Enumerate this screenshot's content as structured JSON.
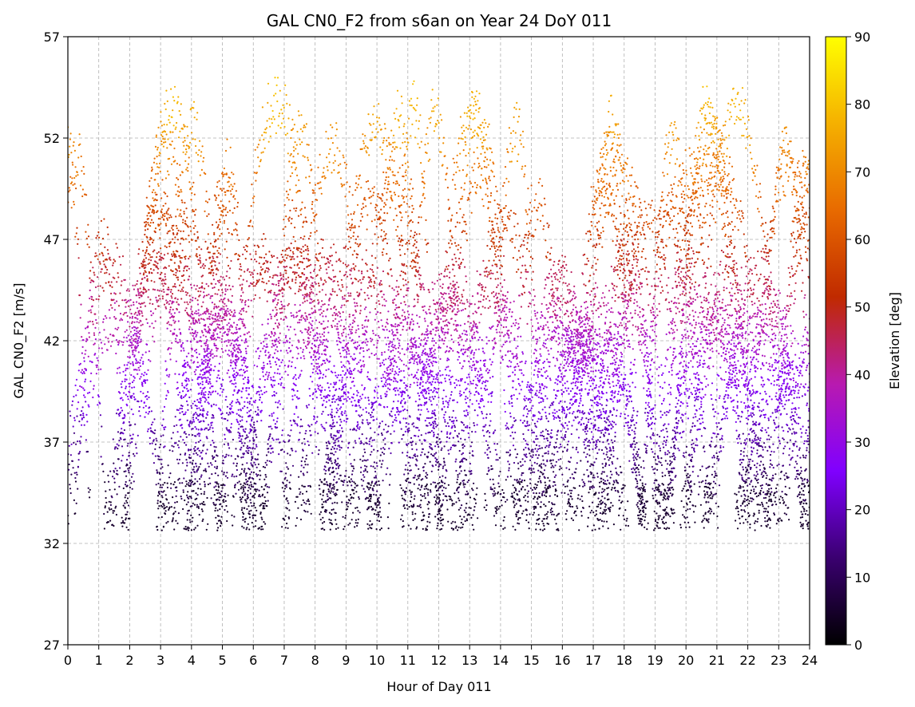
{
  "chart_data": {
    "type": "scatter",
    "title": "GAL CN0_F2 from s6an on Year 24 DoY 011",
    "xlabel": "Hour of Day 011",
    "ylabel": "GAL CN0_F2 [m/s]",
    "xlim": [
      0,
      24
    ],
    "ylim": [
      27,
      57
    ],
    "xticks": [
      "0",
      "1",
      "2",
      "3",
      "4",
      "5",
      "6",
      "7",
      "8",
      "9",
      "10",
      "11",
      "12",
      "13",
      "14",
      "15",
      "16",
      "17",
      "18",
      "19",
      "20",
      "21",
      "22",
      "23",
      "24"
    ],
    "yticks": [
      "27",
      "32",
      "37",
      "42",
      "47",
      "52",
      "57"
    ],
    "grid": true,
    "colormap": "gnuplot",
    "colorbar": {
      "label": "Elevation [deg]",
      "range": [
        0,
        90
      ],
      "ticks": [
        "0",
        "10",
        "20",
        "30",
        "40",
        "50",
        "60",
        "70",
        "80",
        "90"
      ],
      "colors": [
        "#000000",
        "#3a0070",
        "#8000ff",
        "#b81ab0",
        "#c02a00",
        "#e86a00",
        "#f5b000",
        "#ffff00"
      ]
    },
    "series_summary": "Dense point cloud of Galileo satellite passes: values range roughly 32-55; low-elevation points (purple) near 33-45, high-elevation points (orange) near 48-55.",
    "series": [
      {
        "x_range": [
          0,
          24
        ],
        "y_range": [
          32,
          55
        ],
        "elevation_range": [
          5,
          80
        ],
        "pattern": "many overlapping satellite passes"
      }
    ]
  }
}
